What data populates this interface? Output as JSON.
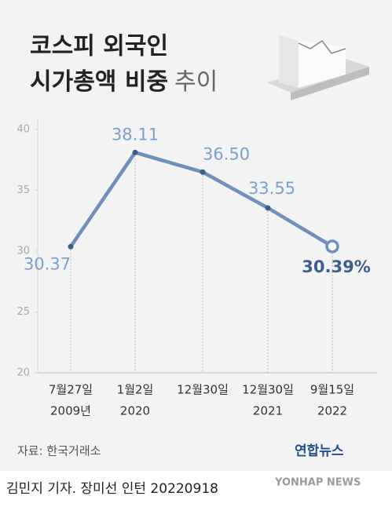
{
  "title": {
    "line1": "코스피 외국인",
    "line2_bold": "시가총액 비중",
    "line2_light": "추이"
  },
  "chart_data": {
    "type": "line",
    "categories": [
      [
        "7월27일",
        "2009년"
      ],
      [
        "1월2일",
        "2020"
      ],
      [
        "12월30일"
      ],
      [
        "12월30일",
        "2021"
      ],
      [
        "9월15일",
        "2022"
      ]
    ],
    "values": [
      30.37,
      38.11,
      36.5,
      33.55,
      30.39
    ],
    "value_labels": [
      "30.37",
      "38.11",
      "36.50",
      "33.55",
      "30.39%"
    ],
    "color": "#6f8fbc",
    "ylim": [
      20,
      40
    ],
    "yticks": [
      20,
      25,
      30,
      35,
      40
    ]
  },
  "source": "자료: 한국거래소",
  "logo": {
    "name": "연합뉴스",
    "english": "YONHAP NEWS"
  },
  "credit": "김민지 기자. 장미선 인턴  20220918"
}
